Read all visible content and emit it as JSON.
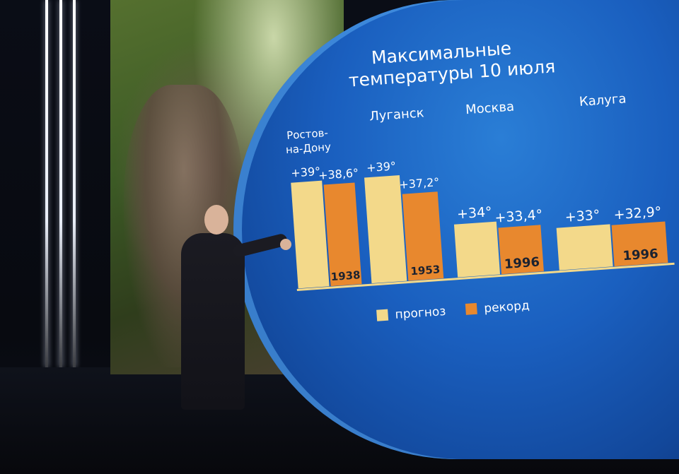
{
  "chart_data": {
    "type": "bar",
    "title": [
      "Максимальные",
      "температуры 10 июля"
    ],
    "categories": [
      "Ростов-на-Дону",
      "Луганск",
      "Москва",
      "Калуга"
    ],
    "category_lines": [
      [
        "Ростов-",
        "на-Дону"
      ],
      [
        "Луганск"
      ],
      [
        "Москва"
      ],
      [
        "Калуга"
      ]
    ],
    "series": [
      {
        "name": "прогноз",
        "values": [
          39,
          39,
          34,
          33
        ],
        "labels": [
          "+39°",
          "+39°",
          "+34°",
          "+33°"
        ],
        "color": "#f3d98a"
      },
      {
        "name": "рекорд",
        "values": [
          38.6,
          37.2,
          33.4,
          32.9
        ],
        "labels": [
          "+38,6°",
          "+37,2°",
          "+33,4°",
          "+32,9°"
        ],
        "years": [
          "1938",
          "1953",
          "1996",
          "1996"
        ],
        "color": "#e8882e"
      }
    ],
    "legend": [
      "прогноз",
      "рекорд"
    ],
    "legend_position": "bottom",
    "grid": false
  },
  "colors": {
    "screen_blue": "#1a5fbf",
    "forecast_bar": "#f3d98a",
    "record_bar": "#e8882e",
    "axis_line": "#f3d98a"
  }
}
